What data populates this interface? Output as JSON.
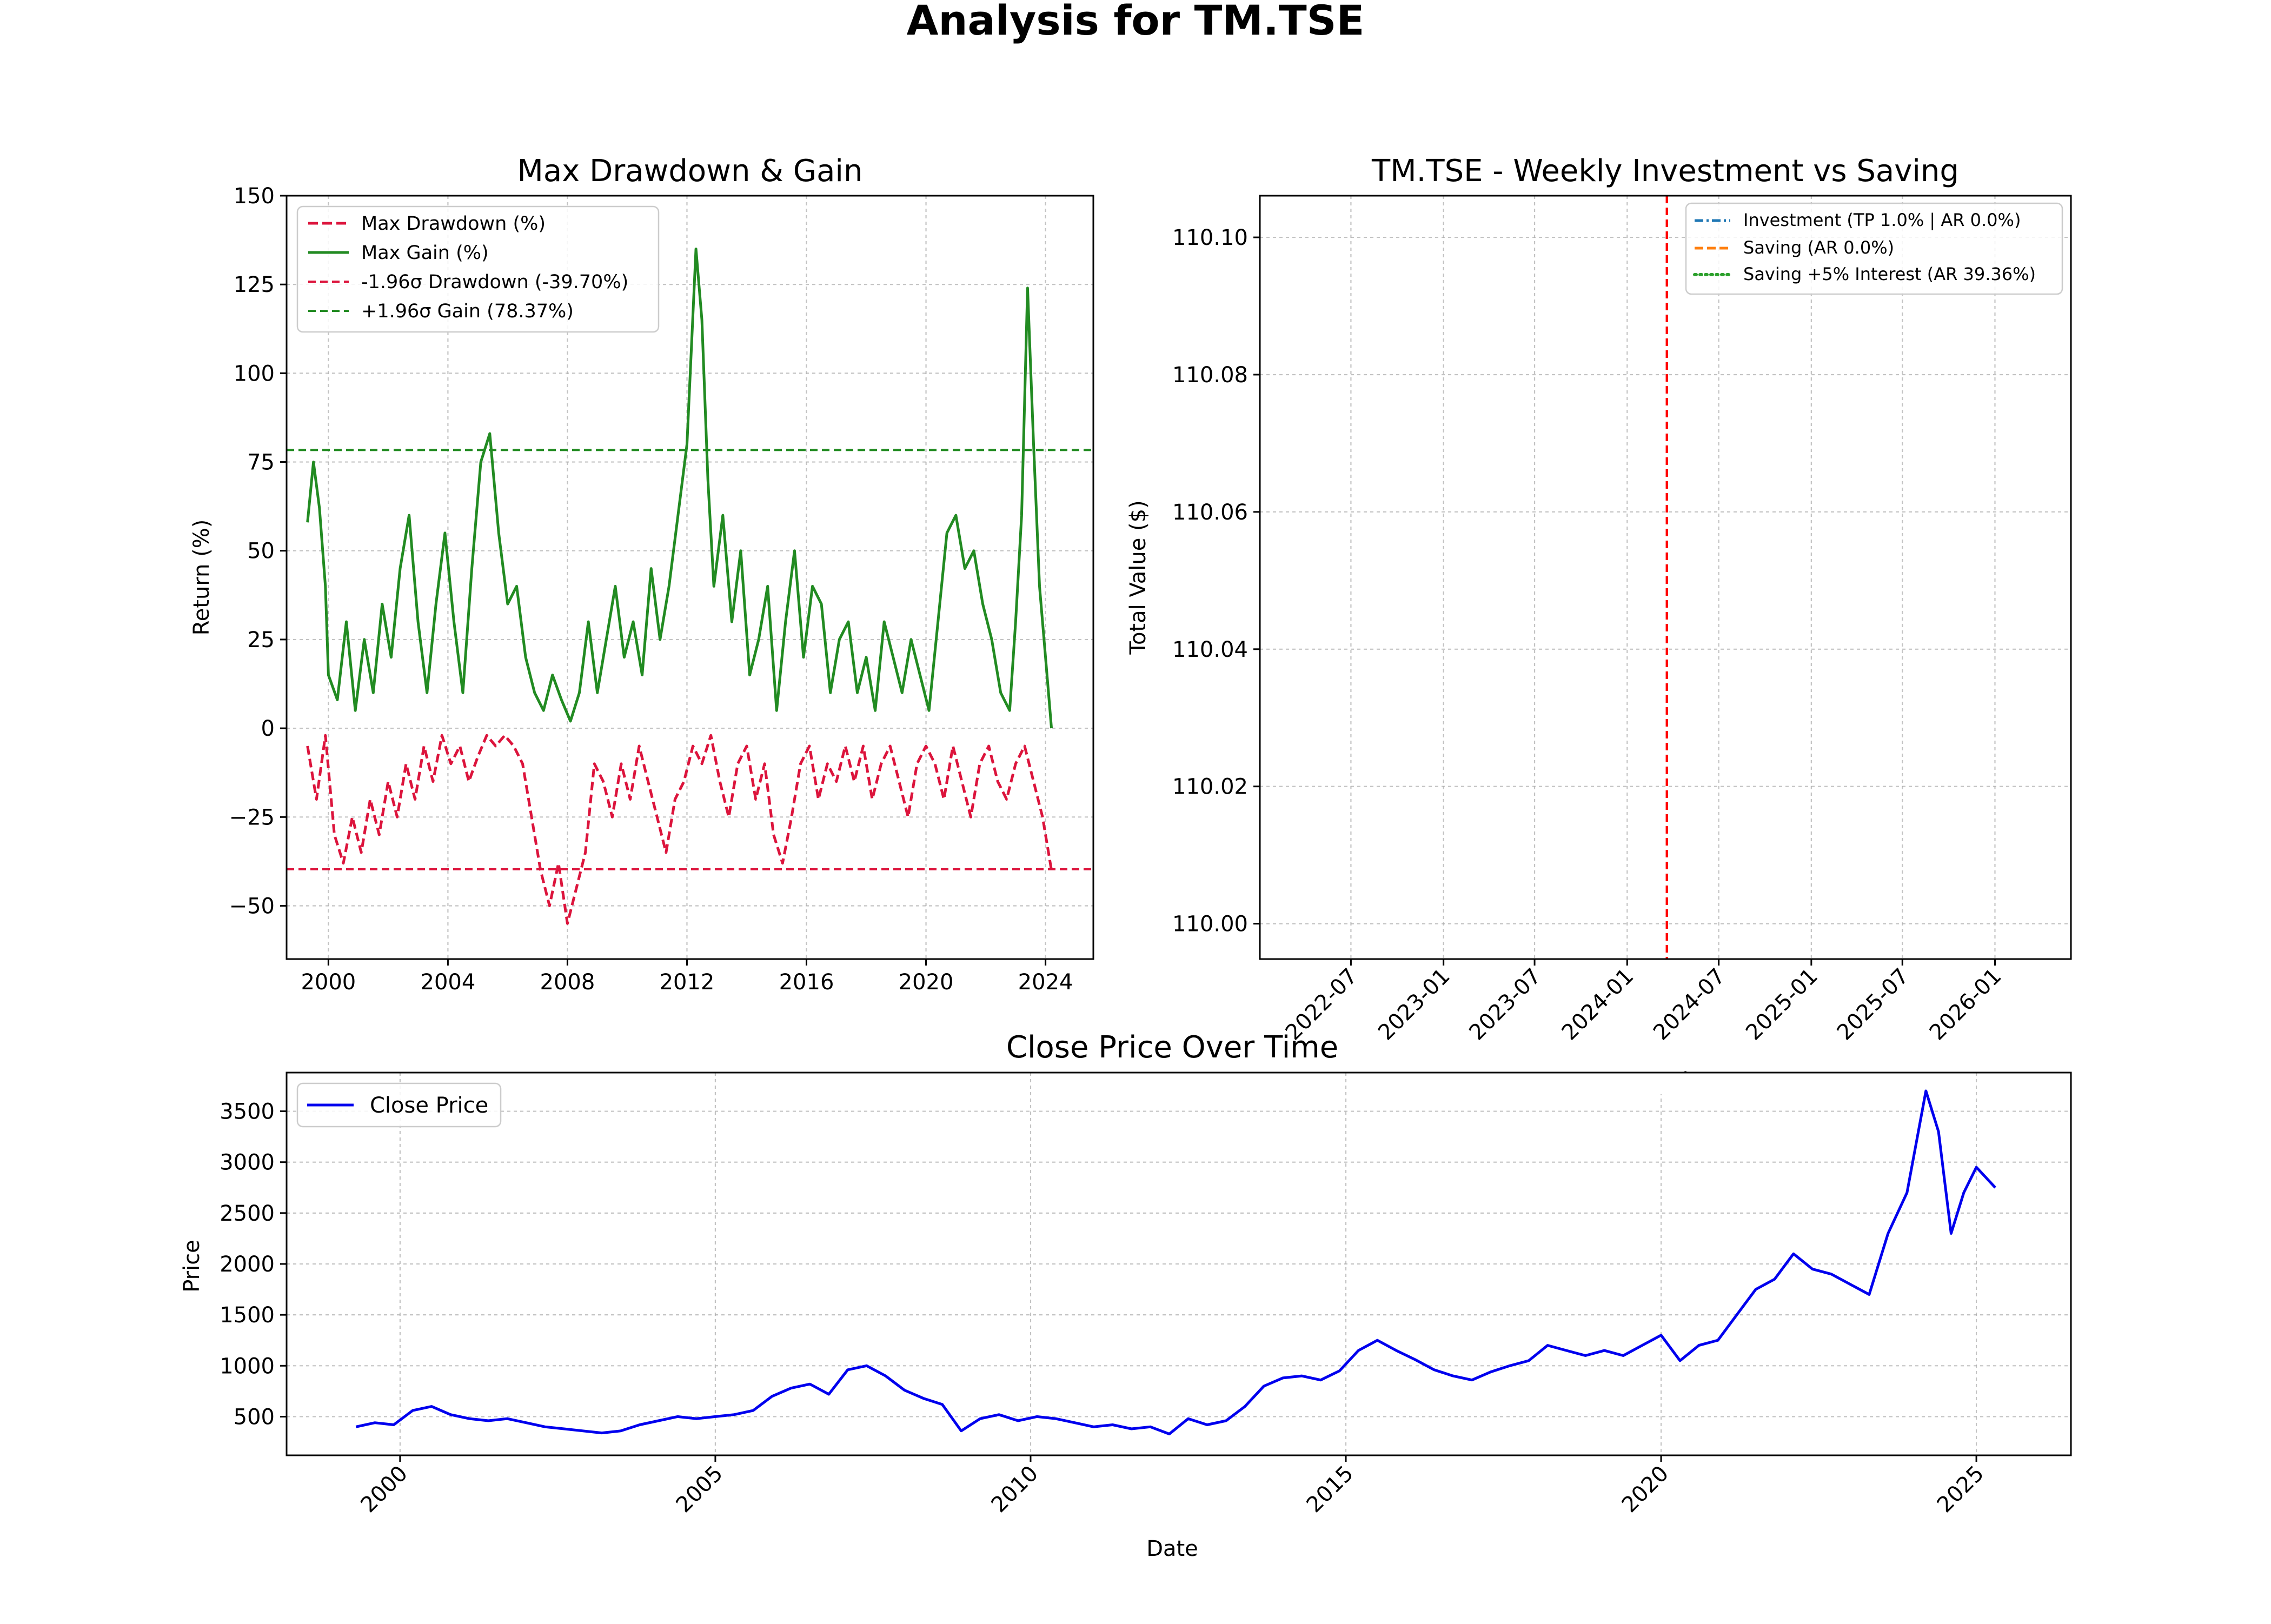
{
  "figure_title": "Analysis for TM.TSE",
  "chart_data": [
    {
      "id": "drawdown",
      "type": "line",
      "title": "Max Drawdown & Gain",
      "xlabel": "",
      "ylabel": "Return (%)",
      "xlim": [
        1998.6,
        2025.6
      ],
      "ylim": [
        -65,
        150
      ],
      "xticks": [
        2000,
        2004,
        2008,
        2012,
        2016,
        2020,
        2024
      ],
      "yticks": [
        -50,
        -25,
        0,
        25,
        50,
        75,
        100,
        125,
        150
      ],
      "grid": true,
      "legend_position": "top-left",
      "legend": [
        "Max Drawdown (%)",
        "Max Gain (%)",
        "-1.96σ Drawdown (-39.70%)",
        "+1.96σ Gain (78.37%)"
      ],
      "hlines": [
        {
          "name": "-1.96σ Drawdown (-39.70%)",
          "y": -39.7,
          "color": "#dc143c",
          "style": "dashed"
        },
        {
          "name": "+1.96σ Gain (78.37%)",
          "y": 78.37,
          "color": "#228b22",
          "style": "dashed"
        }
      ],
      "series": [
        {
          "name": "Max Gain (%)",
          "color": "#228b22",
          "style": "solid",
          "x": [
            1999.3,
            1999.5,
            1999.7,
            1999.9,
            2000.0,
            2000.3,
            2000.6,
            2000.9,
            2001.2,
            2001.5,
            2001.8,
            2002.1,
            2002.4,
            2002.7,
            2003.0,
            2003.3,
            2003.6,
            2003.9,
            2004.2,
            2004.5,
            2004.8,
            2005.1,
            2005.4,
            2005.7,
            2006.0,
            2006.3,
            2006.6,
            2006.9,
            2007.2,
            2007.5,
            2007.8,
            2008.1,
            2008.4,
            2008.7,
            2009.0,
            2009.3,
            2009.6,
            2009.9,
            2010.2,
            2010.5,
            2010.8,
            2011.1,
            2011.4,
            2011.7,
            2012.0,
            2012.3,
            2012.5,
            2012.7,
            2012.9,
            2013.2,
            2013.5,
            2013.8,
            2014.1,
            2014.4,
            2014.7,
            2015.0,
            2015.3,
            2015.6,
            2015.9,
            2016.2,
            2016.5,
            2016.8,
            2017.1,
            2017.4,
            2017.7,
            2018.0,
            2018.3,
            2018.6,
            2018.9,
            2019.2,
            2019.5,
            2019.8,
            2020.1,
            2020.4,
            2020.7,
            2021.0,
            2021.3,
            2021.6,
            2021.9,
            2022.2,
            2022.5,
            2022.8,
            2023.0,
            2023.2,
            2023.4,
            2023.6,
            2023.8,
            2024.0,
            2024.2
          ],
          "values": [
            58,
            75,
            62,
            40,
            15,
            8,
            30,
            5,
            25,
            10,
            35,
            20,
            45,
            60,
            30,
            10,
            35,
            55,
            30,
            10,
            45,
            75,
            83,
            55,
            35,
            40,
            20,
            10,
            5,
            15,
            8,
            2,
            10,
            30,
            10,
            25,
            40,
            20,
            30,
            15,
            45,
            25,
            40,
            60,
            80,
            135,
            115,
            70,
            40,
            60,
            30,
            50,
            15,
            25,
            40,
            5,
            30,
            50,
            20,
            40,
            35,
            10,
            25,
            30,
            10,
            20,
            5,
            30,
            20,
            10,
            25,
            15,
            5,
            30,
            55,
            60,
            45,
            50,
            35,
            25,
            10,
            5,
            30,
            60,
            124,
            80,
            40,
            20,
            0
          ]
        },
        {
          "name": "Max Drawdown (%)",
          "color": "#dc143c",
          "style": "dashed",
          "x": [
            1999.3,
            1999.6,
            1999.9,
            2000.2,
            2000.5,
            2000.8,
            2001.1,
            2001.4,
            2001.7,
            2002.0,
            2002.3,
            2002.6,
            2002.9,
            2003.2,
            2003.5,
            2003.8,
            2004.1,
            2004.4,
            2004.7,
            2005.0,
            2005.3,
            2005.6,
            2005.9,
            2006.2,
            2006.5,
            2006.8,
            2007.1,
            2007.4,
            2007.7,
            2008.0,
            2008.3,
            2008.6,
            2008.9,
            2009.2,
            2009.5,
            2009.8,
            2010.1,
            2010.4,
            2010.7,
            2011.0,
            2011.3,
            2011.6,
            2011.9,
            2012.2,
            2012.5,
            2012.8,
            2013.1,
            2013.4,
            2013.7,
            2014.0,
            2014.3,
            2014.6,
            2014.9,
            2015.2,
            2015.5,
            2015.8,
            2016.1,
            2016.4,
            2016.7,
            2017.0,
            2017.3,
            2017.6,
            2017.9,
            2018.2,
            2018.5,
            2018.8,
            2019.1,
            2019.4,
            2019.7,
            2020.0,
            2020.3,
            2020.6,
            2020.9,
            2021.2,
            2021.5,
            2021.8,
            2022.1,
            2022.4,
            2022.7,
            2023.0,
            2023.3,
            2023.6,
            2023.9,
            2024.2
          ],
          "values": [
            -5,
            -20,
            -2,
            -30,
            -38,
            -25,
            -35,
            -20,
            -30,
            -15,
            -25,
            -10,
            -20,
            -5,
            -15,
            -2,
            -10,
            -5,
            -15,
            -8,
            -2,
            -5,
            -2,
            -5,
            -10,
            -25,
            -40,
            -50,
            -38,
            -55,
            -45,
            -35,
            -10,
            -15,
            -25,
            -10,
            -20,
            -5,
            -15,
            -25,
            -35,
            -20,
            -15,
            -5,
            -10,
            -2,
            -15,
            -25,
            -10,
            -5,
            -20,
            -10,
            -30,
            -38,
            -25,
            -10,
            -5,
            -20,
            -10,
            -15,
            -5,
            -15,
            -5,
            -20,
            -10,
            -5,
            -15,
            -25,
            -10,
            -5,
            -10,
            -20,
            -5,
            -15,
            -25,
            -10,
            -5,
            -15,
            -20,
            -10,
            -5,
            -15,
            -25,
            -40
          ]
        }
      ]
    },
    {
      "id": "investment",
      "type": "line",
      "title": "TM.TSE - Weekly Investment vs Saving",
      "xlabel": "Week",
      "ylabel": "Total Value ($)",
      "ylim": [
        99.9949,
        100.1061
      ],
      "yticks": [
        110.0,
        110.02,
        110.04,
        110.06,
        110.08,
        110.1
      ],
      "xlim": [
        "2022-01-01",
        "2026-06-01"
      ],
      "xticks": [
        "2022-07",
        "2023-01",
        "2023-07",
        "2024-01",
        "2024-07",
        "2025-01",
        "2025-07",
        "2026-01"
      ],
      "grid": true,
      "legend_position": "top-right",
      "legend": [
        {
          "name": "Investment (TP 1.0% | AR 0.0%)",
          "color": "#1f77b4",
          "style": "dashdot"
        },
        {
          "name": "Saving (AR 0.0%)",
          "color": "#ff7f0e",
          "style": "dashed"
        },
        {
          "name": "Saving +5% Interest (AR 39.36%)",
          "color": "#2ca02c",
          "style": "dotted"
        }
      ],
      "vline": {
        "x": "2024-03-20",
        "color": "#ff0000",
        "style": "dashed"
      }
    },
    {
      "id": "close",
      "type": "line",
      "title": "Close Price Over Time",
      "xlabel": "Date",
      "ylabel": "Price",
      "xlim": [
        1998.2,
        2026.5
      ],
      "ylim": [
        120,
        3880
      ],
      "xticks": [
        2000,
        2005,
        2010,
        2015,
        2020,
        2025
      ],
      "yticks": [
        500,
        1000,
        1500,
        2000,
        2500,
        3000,
        3500
      ],
      "grid": true,
      "legend_position": "top-left",
      "series": [
        {
          "name": "Close Price",
          "color": "#0000ee",
          "style": "solid",
          "x": [
            1999.3,
            1999.6,
            1999.9,
            2000.2,
            2000.5,
            2000.8,
            2001.1,
            2001.4,
            2001.7,
            2002.0,
            2002.3,
            2002.6,
            2002.9,
            2003.2,
            2003.5,
            2003.8,
            2004.1,
            2004.4,
            2004.7,
            2005.0,
            2005.3,
            2005.6,
            2005.9,
            2006.2,
            2006.5,
            2006.8,
            2007.1,
            2007.4,
            2007.7,
            2008.0,
            2008.3,
            2008.6,
            2008.9,
            2009.2,
            2009.5,
            2009.8,
            2010.1,
            2010.4,
            2010.7,
            2011.0,
            2011.3,
            2011.6,
            2011.9,
            2012.2,
            2012.5,
            2012.8,
            2013.1,
            2013.4,
            2013.7,
            2014.0,
            2014.3,
            2014.6,
            2014.9,
            2015.2,
            2015.5,
            2015.8,
            2016.1,
            2016.4,
            2016.7,
            2017.0,
            2017.3,
            2017.6,
            2017.9,
            2018.2,
            2018.5,
            2018.8,
            2019.1,
            2019.4,
            2019.7,
            2020.0,
            2020.3,
            2020.6,
            2020.9,
            2021.2,
            2021.5,
            2021.8,
            2022.1,
            2022.4,
            2022.7,
            2023.0,
            2023.3,
            2023.6,
            2023.9,
            2024.2,
            2024.4,
            2024.6,
            2024.8,
            2025.0,
            2025.3
          ],
          "values": [
            400,
            440,
            420,
            560,
            600,
            520,
            480,
            460,
            480,
            440,
            400,
            380,
            360,
            340,
            360,
            420,
            460,
            500,
            480,
            500,
            520,
            560,
            700,
            780,
            820,
            720,
            960,
            1000,
            900,
            760,
            680,
            620,
            360,
            480,
            520,
            460,
            500,
            480,
            440,
            400,
            420,
            380,
            400,
            330,
            480,
            420,
            460,
            600,
            800,
            880,
            900,
            860,
            950,
            1150,
            1250,
            1150,
            1060,
            960,
            900,
            860,
            940,
            1000,
            1050,
            1200,
            1150,
            1100,
            1150,
            1100,
            1200,
            1300,
            1050,
            1200,
            1250,
            1500,
            1750,
            1850,
            2100,
            1950,
            1900,
            1800,
            1700,
            2300,
            2700,
            3700,
            3300,
            2300,
            2700,
            2950,
            2750
          ]
        }
      ]
    }
  ]
}
